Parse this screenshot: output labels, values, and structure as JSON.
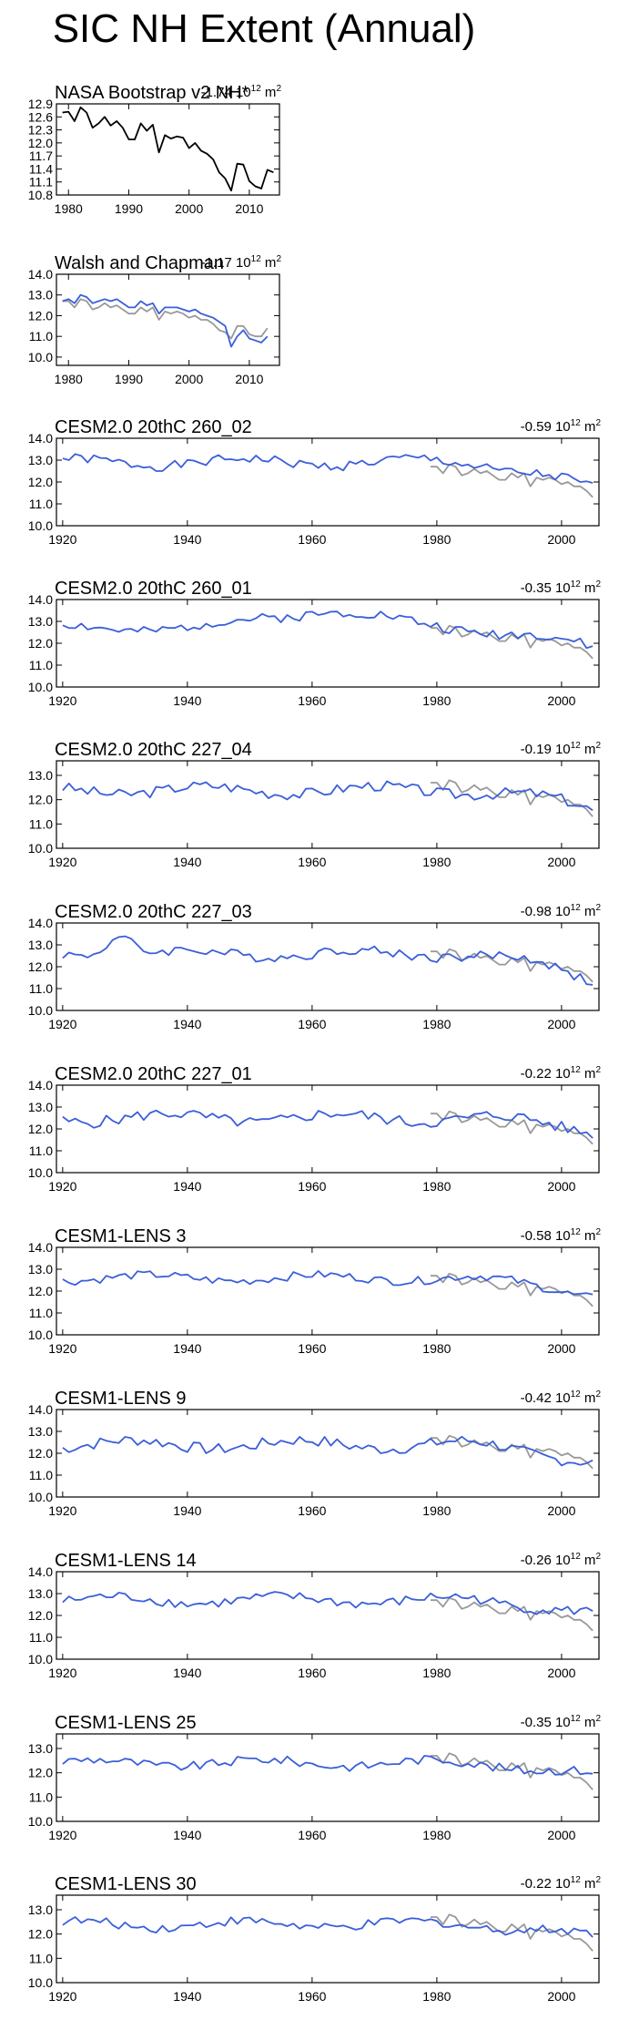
{
  "title": "SIC NH Extent (Annual)",
  "colors": {
    "model": "#3b5fd9",
    "obs": "#999999",
    "black": "#000000"
  },
  "chart_data": [
    {
      "type": "line",
      "title": "NASA Bootstrap v2 NH*",
      "trend": "-1.74",
      "trend_unit_base": "10",
      "trend_unit_exp": "12",
      "trend_unit_tail": "m",
      "trend_unit_tail_exp": "2",
      "xlim": [
        1978,
        2015
      ],
      "ylim": [
        10.8,
        12.9
      ],
      "xticks": [
        1980,
        1990,
        2000,
        2010
      ],
      "xtick_labels": [
        "1980",
        "1990",
        "2000",
        "2010"
      ],
      "yticks": [
        10.8,
        11.1,
        11.4,
        11.7,
        12.0,
        12.3,
        12.6,
        12.9
      ],
      "ytick_labels": [
        "10.8",
        "11.1",
        "11.4",
        "11.7",
        "12.0",
        "12.3",
        "12.6",
        "12.9"
      ],
      "series": [
        {
          "color": "black",
          "x": [
            1979,
            1980,
            1981,
            1982,
            1983,
            1984,
            1985,
            1986,
            1987,
            1988,
            1989,
            1990,
            1991,
            1992,
            1993,
            1994,
            1995,
            1996,
            1997,
            1998,
            1999,
            2000,
            2001,
            2002,
            2003,
            2004,
            2005,
            2006,
            2007,
            2008,
            2009,
            2010,
            2011,
            2012,
            2013,
            2014
          ],
          "values": [
            12.7,
            12.72,
            12.5,
            12.82,
            12.7,
            12.35,
            12.45,
            12.6,
            12.4,
            12.5,
            12.35,
            12.08,
            12.08,
            12.45,
            12.28,
            12.42,
            11.78,
            12.18,
            12.1,
            12.15,
            12.12,
            11.88,
            12.0,
            11.82,
            11.75,
            11.62,
            11.32,
            11.18,
            10.9,
            11.52,
            11.5,
            11.12,
            11.0,
            10.95,
            11.38,
            11.32
          ]
        }
      ]
    },
    {
      "type": "line",
      "title": "Walsh and Chapman",
      "trend": "-1.17",
      "trend_unit_base": "10",
      "trend_unit_exp": "12",
      "trend_unit_tail": "m",
      "trend_unit_tail_exp": "2",
      "xlim": [
        1978,
        2015
      ],
      "ylim": [
        9.6,
        14.0
      ],
      "xticks": [
        1980,
        1990,
        2000,
        2010
      ],
      "xtick_labels": [
        "1980",
        "1990",
        "2000",
        "2010"
      ],
      "yticks": [
        10.0,
        11.0,
        12.0,
        13.0,
        14.0
      ],
      "ytick_labels": [
        "10.0",
        "11.0",
        "12.0",
        "13.0",
        "14.0"
      ],
      "series": [
        {
          "color": "obs",
          "x": [
            1979,
            1980,
            1981,
            1982,
            1983,
            1984,
            1985,
            1986,
            1987,
            1988,
            1989,
            1990,
            1991,
            1992,
            1993,
            1994,
            1995,
            1996,
            1997,
            1998,
            1999,
            2000,
            2001,
            2002,
            2003,
            2004,
            2005,
            2006,
            2007,
            2008,
            2009,
            2010,
            2011,
            2012,
            2013
          ],
          "values": [
            12.7,
            12.7,
            12.4,
            12.8,
            12.7,
            12.3,
            12.4,
            12.6,
            12.4,
            12.5,
            12.3,
            12.1,
            12.1,
            12.4,
            12.2,
            12.4,
            11.8,
            12.2,
            12.1,
            12.2,
            12.1,
            11.9,
            12.0,
            11.8,
            11.8,
            11.6,
            11.3,
            11.2,
            10.9,
            11.5,
            11.5,
            11.1,
            11.0,
            11.0,
            11.4
          ]
        },
        {
          "color": "model",
          "x": [
            1979,
            1980,
            1981,
            1982,
            1983,
            1984,
            1985,
            1986,
            1987,
            1988,
            1989,
            1990,
            1991,
            1992,
            1993,
            1994,
            1995,
            1996,
            1997,
            1998,
            1999,
            2000,
            2001,
            2002,
            2003,
            2004,
            2005,
            2006,
            2007,
            2008,
            2009,
            2010,
            2011,
            2012,
            2013
          ],
          "values": [
            12.7,
            12.8,
            12.6,
            13.0,
            12.9,
            12.6,
            12.7,
            12.8,
            12.7,
            12.8,
            12.6,
            12.4,
            12.4,
            12.7,
            12.5,
            12.6,
            12.1,
            12.4,
            12.4,
            12.4,
            12.3,
            12.2,
            12.3,
            12.1,
            12.0,
            11.9,
            11.7,
            11.5,
            10.5,
            11.0,
            11.3,
            10.9,
            10.8,
            10.7,
            11.0
          ]
        }
      ]
    },
    {
      "type": "line",
      "title": "CESM2.0 20thC 260_02",
      "trend": "-0.59",
      "trend_unit_base": "10",
      "trend_unit_exp": "12",
      "trend_unit_tail": "m",
      "trend_unit_tail_exp": "2",
      "xlim": [
        1919,
        2006
      ],
      "ylim": [
        10.0,
        14.0
      ],
      "xticks": [
        1920,
        1940,
        1960,
        1980,
        2000
      ],
      "xtick_labels": [
        "1920",
        "1940",
        "1960",
        "1980",
        "2000"
      ],
      "yticks": [
        10.0,
        11.0,
        12.0,
        13.0,
        14.0
      ],
      "ytick_labels": [
        "10.0",
        "11.0",
        "12.0",
        "13.0",
        "14.0"
      ],
      "model_base": 12.9,
      "model_trend_end": 11.6,
      "model_amp": 0.3,
      "seed": 1
    },
    {
      "type": "line",
      "title": "CESM2.0 20thC 260_01",
      "trend": "-0.35",
      "trend_unit_base": "10",
      "trend_unit_exp": "12",
      "trend_unit_tail": "m",
      "trend_unit_tail_exp": "2",
      "xlim": [
        1919,
        2006
      ],
      "ylim": [
        10.0,
        14.0
      ],
      "xticks": [
        1920,
        1940,
        1960,
        1980,
        2000
      ],
      "xtick_labels": [
        "1920",
        "1940",
        "1960",
        "1980",
        "2000"
      ],
      "yticks": [
        10.0,
        11.0,
        12.0,
        13.0,
        14.0
      ],
      "ytick_labels": [
        "10.0",
        "11.0",
        "12.0",
        "13.0",
        "14.0"
      ],
      "model_base": 12.7,
      "model_trend_end": 11.7,
      "model_amp": 0.3,
      "bump": [
        1962,
        0.8,
        12
      ],
      "seed": 2
    },
    {
      "type": "line",
      "title": "CESM2.0 20thC 227_04",
      "trend": "-0.19",
      "trend_unit_base": "10",
      "trend_unit_exp": "12",
      "trend_unit_tail": "m",
      "trend_unit_tail_exp": "2",
      "xlim": [
        1919,
        2006
      ],
      "ylim": [
        10.0,
        13.6
      ],
      "xticks": [
        1920,
        1940,
        1960,
        1980,
        2000
      ],
      "xtick_labels": [
        "1920",
        "1940",
        "1960",
        "1980",
        "2000"
      ],
      "yticks": [
        10.0,
        11.0,
        12.0,
        13.0
      ],
      "ytick_labels": [
        "10.0",
        "11.0",
        "12.0",
        "13.0"
      ],
      "model_base": 12.4,
      "model_trend_end": 11.6,
      "model_amp": 0.3,
      "seed": 3
    },
    {
      "type": "line",
      "title": "CESM2.0 20thC 227_03",
      "trend": "-0.98",
      "trend_unit_base": "10",
      "trend_unit_exp": "12",
      "trend_unit_tail": "m",
      "trend_unit_tail_exp": "2",
      "xlim": [
        1919,
        2006
      ],
      "ylim": [
        10.0,
        14.0
      ],
      "xticks": [
        1920,
        1940,
        1960,
        1980,
        2000
      ],
      "xtick_labels": [
        "1920",
        "1940",
        "1960",
        "1980",
        "2000"
      ],
      "yticks": [
        10.0,
        11.0,
        12.0,
        13.0,
        14.0
      ],
      "ytick_labels": [
        "10.0",
        "11.0",
        "12.0",
        "13.0",
        "14.0"
      ],
      "model_base": 12.6,
      "model_trend_end": 11.4,
      "model_amp": 0.3,
      "bump": [
        1929,
        0.9,
        3
      ],
      "seed": 4
    },
    {
      "type": "line",
      "title": "CESM2.0 20thC 227_01",
      "trend": "-0.22",
      "trend_unit_base": "10",
      "trend_unit_exp": "12",
      "trend_unit_tail": "m",
      "trend_unit_tail_exp": "2",
      "xlim": [
        1919,
        2006
      ],
      "ylim": [
        10.0,
        14.0
      ],
      "xticks": [
        1920,
        1940,
        1960,
        1980,
        2000
      ],
      "xtick_labels": [
        "1920",
        "1940",
        "1960",
        "1980",
        "2000"
      ],
      "yticks": [
        10.0,
        11.0,
        12.0,
        13.0,
        14.0
      ],
      "ytick_labels": [
        "10.0",
        "11.0",
        "12.0",
        "13.0",
        "14.0"
      ],
      "model_base": 12.5,
      "model_trend_end": 12.0,
      "model_amp": 0.35,
      "seed": 5
    },
    {
      "type": "line",
      "title": "CESM1-LENS 3",
      "trend": "-0.58",
      "trend_unit_base": "10",
      "trend_unit_exp": "12",
      "trend_unit_tail": "m",
      "trend_unit_tail_exp": "2",
      "xlim": [
        1919,
        2006
      ],
      "ylim": [
        10.0,
        14.0
      ],
      "xticks": [
        1920,
        1940,
        1960,
        1980,
        2000
      ],
      "xtick_labels": [
        "1920",
        "1940",
        "1960",
        "1980",
        "2000"
      ],
      "yticks": [
        10.0,
        11.0,
        12.0,
        13.0,
        14.0
      ],
      "ytick_labels": [
        "10.0",
        "11.0",
        "12.0",
        "13.0",
        "14.0"
      ],
      "model_base": 12.6,
      "model_trend_end": 11.8,
      "model_amp": 0.25,
      "seed": 6
    },
    {
      "type": "line",
      "title": "CESM1-LENS 9",
      "trend": "-0.42",
      "trend_unit_base": "10",
      "trend_unit_exp": "12",
      "trend_unit_tail": "m",
      "trend_unit_tail_exp": "2",
      "xlim": [
        1919,
        2006
      ],
      "ylim": [
        10.0,
        14.0
      ],
      "xticks": [
        1920,
        1940,
        1960,
        1980,
        2000
      ],
      "xtick_labels": [
        "1920",
        "1940",
        "1960",
        "1980",
        "2000"
      ],
      "yticks": [
        10.0,
        11.0,
        12.0,
        13.0,
        14.0
      ],
      "ytick_labels": [
        "10.0",
        "11.0",
        "12.0",
        "13.0",
        "14.0"
      ],
      "model_base": 12.4,
      "model_trend_end": 11.6,
      "model_amp": 0.35,
      "seed": 7
    },
    {
      "type": "line",
      "title": "CESM1-LENS 14",
      "trend": "-0.26",
      "trend_unit_base": "10",
      "trend_unit_exp": "12",
      "trend_unit_tail": "m",
      "trend_unit_tail_exp": "2",
      "xlim": [
        1919,
        2006
      ],
      "ylim": [
        10.0,
        14.0
      ],
      "xticks": [
        1920,
        1940,
        1960,
        1980,
        2000
      ],
      "xtick_labels": [
        "1920",
        "1940",
        "1960",
        "1980",
        "2000"
      ],
      "yticks": [
        10.0,
        11.0,
        12.0,
        13.0,
        14.0
      ],
      "ytick_labels": [
        "10.0",
        "11.0",
        "12.0",
        "13.0",
        "14.0"
      ],
      "model_base": 12.7,
      "model_trend_end": 12.1,
      "model_amp": 0.3,
      "seed": 8
    },
    {
      "type": "line",
      "title": "CESM1-LENS 25",
      "trend": "-0.35",
      "trend_unit_base": "10",
      "trend_unit_exp": "12",
      "trend_unit_tail": "m",
      "trend_unit_tail_exp": "2",
      "xlim": [
        1919,
        2006
      ],
      "ylim": [
        10.0,
        13.6
      ],
      "xticks": [
        1920,
        1940,
        1960,
        1980,
        2000
      ],
      "xtick_labels": [
        "1920",
        "1940",
        "1960",
        "1980",
        "2000"
      ],
      "yticks": [
        10.0,
        11.0,
        12.0,
        13.0
      ],
      "ytick_labels": [
        "10.0",
        "11.0",
        "12.0",
        "13.0"
      ],
      "model_base": 12.4,
      "model_trend_end": 11.9,
      "model_amp": 0.25,
      "seed": 9
    },
    {
      "type": "line",
      "title": "CESM1-LENS 30",
      "trend": "-0.22",
      "trend_unit_base": "10",
      "trend_unit_exp": "12",
      "trend_unit_tail": "m",
      "trend_unit_tail_exp": "2",
      "xlim": [
        1919,
        2006
      ],
      "ylim": [
        10.0,
        13.6
      ],
      "xticks": [
        1920,
        1940,
        1960,
        1980,
        2000
      ],
      "xtick_labels": [
        "1920",
        "1940",
        "1960",
        "1980",
        "2000"
      ],
      "yticks": [
        10.0,
        11.0,
        12.0,
        13.0
      ],
      "ytick_labels": [
        "10.0",
        "11.0",
        "12.0",
        "13.0"
      ],
      "model_base": 12.4,
      "model_trend_end": 11.9,
      "model_amp": 0.25,
      "seed": 10
    }
  ],
  "obs_overlay": {
    "x": [
      1979,
      1980,
      1981,
      1982,
      1983,
      1984,
      1985,
      1986,
      1987,
      1988,
      1989,
      1990,
      1991,
      1992,
      1993,
      1994,
      1995,
      1996,
      1997,
      1998,
      1999,
      2000,
      2001,
      2002,
      2003,
      2004,
      2005
    ],
    "values": [
      12.7,
      12.7,
      12.4,
      12.8,
      12.7,
      12.3,
      12.4,
      12.6,
      12.4,
      12.5,
      12.3,
      12.1,
      12.1,
      12.4,
      12.2,
      12.4,
      11.8,
      12.2,
      12.1,
      12.2,
      12.1,
      11.9,
      12.0,
      11.8,
      11.8,
      11.6,
      11.3
    ]
  }
}
